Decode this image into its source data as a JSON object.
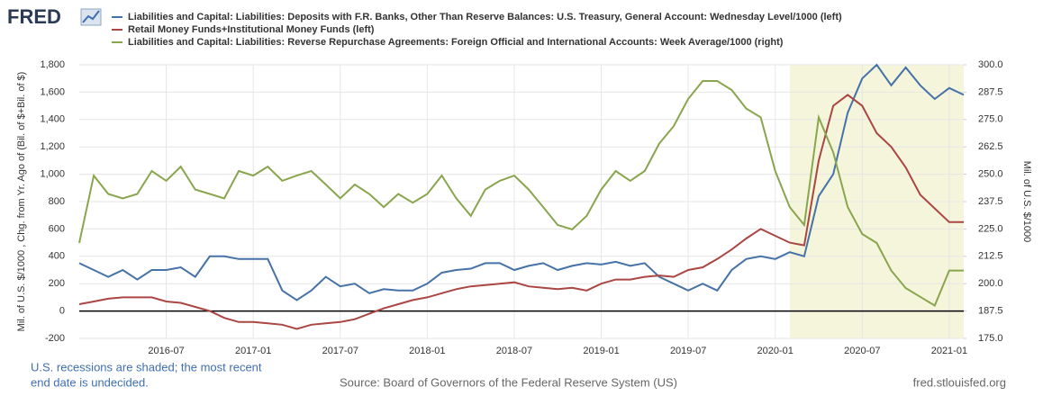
{
  "chart_data": {
    "type": "line",
    "logo": "FRED",
    "left_axis_label": "Mil. of U.S. $/1000 , Chg. from Yr. Ago of (Bil. of $+Bil. of $)",
    "right_axis_label": "Mil. of U.S. $/1000",
    "notes": [
      "U.S. recessions are shaded; the most recent",
      "end date is undecided."
    ],
    "source": "Source: Board of Governors of the Federal Reserve System (US)",
    "site": "fred.stlouisfed.org",
    "recession_start": "2020-02",
    "grid": true,
    "x": [
      "2016-01",
      "2016-02",
      "2016-03",
      "2016-04",
      "2016-05",
      "2016-06",
      "2016-07",
      "2016-08",
      "2016-09",
      "2016-10",
      "2016-11",
      "2016-12",
      "2017-01",
      "2017-02",
      "2017-03",
      "2017-04",
      "2017-05",
      "2017-06",
      "2017-07",
      "2017-08",
      "2017-09",
      "2017-10",
      "2017-11",
      "2017-12",
      "2018-01",
      "2018-02",
      "2018-03",
      "2018-04",
      "2018-05",
      "2018-06",
      "2018-07",
      "2018-08",
      "2018-09",
      "2018-10",
      "2018-11",
      "2018-12",
      "2019-01",
      "2019-02",
      "2019-03",
      "2019-04",
      "2019-05",
      "2019-06",
      "2019-07",
      "2019-08",
      "2019-09",
      "2019-10",
      "2019-11",
      "2019-12",
      "2020-01",
      "2020-02",
      "2020-03",
      "2020-04",
      "2020-05",
      "2020-06",
      "2020-07",
      "2020-08",
      "2020-09",
      "2020-10",
      "2020-11",
      "2020-12",
      "2021-01",
      "2021-02"
    ],
    "xticks": [
      "2016-07",
      "2017-01",
      "2017-07",
      "2018-01",
      "2018-07",
      "2019-01",
      "2019-07",
      "2020-01",
      "2020-07",
      "2021-01"
    ],
    "ylim": [
      -200,
      1800
    ],
    "yticks": [
      -200,
      0,
      200,
      400,
      600,
      800,
      {
        "value": 1000,
        "label": "1,000"
      },
      {
        "value": 1200,
        "label": "1,200"
      },
      {
        "value": 1400,
        "label": "1,400"
      },
      {
        "value": 1600,
        "label": "1,600"
      },
      {
        "value": 1800,
        "label": "1,800"
      }
    ],
    "y2lim": [
      175,
      300
    ],
    "y2ticks": [
      {
        "value": 175,
        "label": "175.0"
      },
      187.5,
      {
        "value": 200,
        "label": "200.0"
      },
      212.5,
      {
        "value": 225,
        "label": "225.0"
      },
      237.5,
      {
        "value": 250,
        "label": "250.0"
      },
      262.5,
      {
        "value": 275,
        "label": "275.0"
      },
      287.5,
      {
        "value": 300,
        "label": "300.0"
      }
    ],
    "series": [
      {
        "name": "Liabilities and Capital: Liabilities: Deposits with F.R. Banks, Other Than Reserve Balances: U.S. Treasury, General Account: Wednesday Level/1000 (left)",
        "color": "#4572a7",
        "axis": "y",
        "values": [
          350,
          300,
          250,
          300,
          230,
          300,
          300,
          320,
          250,
          400,
          400,
          380,
          380,
          380,
          150,
          80,
          150,
          250,
          180,
          200,
          130,
          160,
          150,
          150,
          200,
          280,
          300,
          310,
          350,
          350,
          300,
          330,
          350,
          300,
          330,
          350,
          340,
          360,
          330,
          350,
          250,
          200,
          150,
          200,
          150,
          300,
          380,
          400,
          380,
          430,
          400,
          840,
          1000,
          1450,
          1700,
          1800,
          1650,
          1780,
          1650,
          1550,
          1630,
          1580
        ]
      },
      {
        "name": "Retail Money Funds+Institutional Money Funds (left)",
        "color": "#aa4643",
        "axis": "y",
        "values": [
          50,
          70,
          90,
          100,
          100,
          100,
          70,
          60,
          30,
          0,
          -50,
          -80,
          -80,
          -90,
          -100,
          -130,
          -100,
          -90,
          -80,
          -60,
          -20,
          20,
          50,
          80,
          100,
          130,
          160,
          180,
          190,
          200,
          210,
          180,
          170,
          160,
          170,
          150,
          200,
          230,
          230,
          250,
          260,
          250,
          300,
          320,
          380,
          450,
          530,
          600,
          550,
          500,
          480,
          1100,
          1500,
          1580,
          1500,
          1300,
          1200,
          1050,
          850,
          750,
          650,
          650
        ]
      },
      {
        "name": "Liabilities and Capital: Liabilities: Reverse Repurchase Agreements: Foreign Official and International Accounts: Week Average/1000 (right)",
        "color": "#89a54e",
        "axis": "y2",
        "values": [
          218.6,
          249.4,
          241,
          239,
          241,
          251.5,
          247,
          253.5,
          243,
          241,
          239,
          251.5,
          249.4,
          253.5,
          247,
          249.4,
          251.5,
          245.3,
          239,
          245.3,
          241,
          235,
          241,
          237,
          241,
          249.4,
          239,
          231,
          243,
          247,
          249.4,
          243,
          235,
          226.8,
          224.8,
          231,
          243,
          251.5,
          247,
          251.5,
          264,
          272,
          284.4,
          292.6,
          292.6,
          288.5,
          280,
          276,
          251.5,
          235,
          226.8,
          276,
          260,
          235,
          222.7,
          218.6,
          206,
          198,
          194,
          190,
          206,
          206
        ]
      }
    ]
  }
}
